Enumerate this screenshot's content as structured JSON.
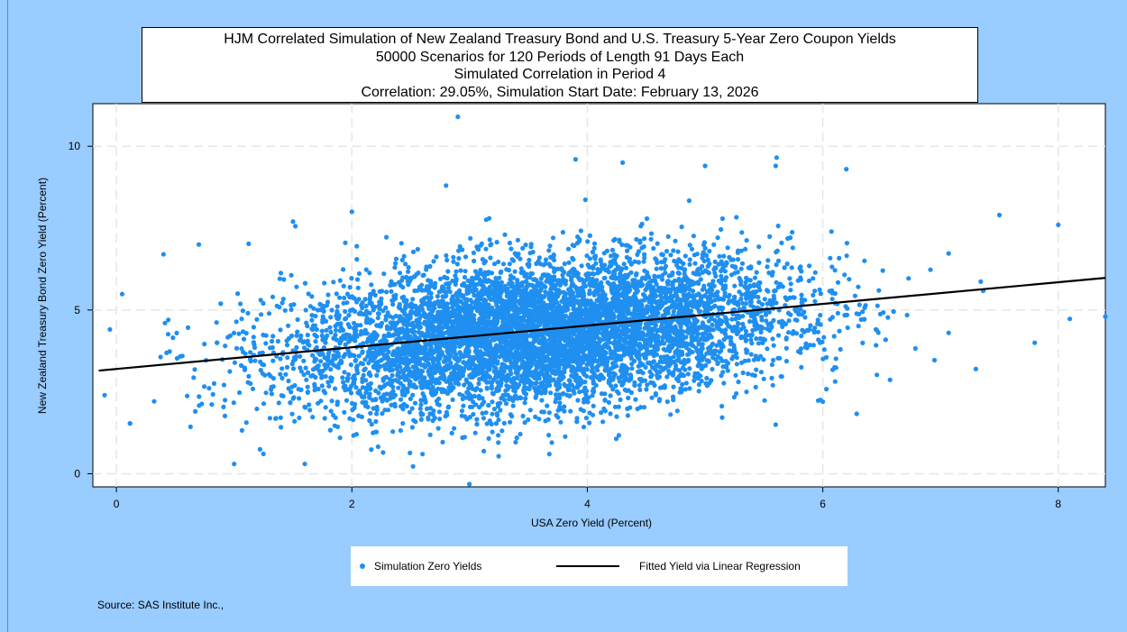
{
  "title_lines": [
    "HJM Correlated Simulation of New Zealand Treasury Bond and U.S. Treasury 5-Year Zero Coupon Yields",
    "50000 Scenarios for 120 Periods of Length 91 Days Each",
    "Simulated Correlation in Period 4",
    "Correlation: 29.05%,  Simulation Start Date:  February 13, 2026"
  ],
  "source": "Source: SAS Institute Inc.,",
  "legend": {
    "scatter_label": "Simulation Zero Yields",
    "line_label": "Fitted Yield via Linear Regression"
  },
  "colors": {
    "background": "#99ccff",
    "points": "#1f8ff0",
    "fit_line": "#000000"
  },
  "chart_data": {
    "type": "scatter",
    "xlabel": "USA Zero Yield (Percent)",
    "ylabel": "New Zealand Treasury Bond Zero Yield (Percent)",
    "xlim": [
      -0.2,
      8.4
    ],
    "ylim": [
      -0.4,
      11.3
    ],
    "xticks": [
      0,
      2,
      4,
      6,
      8
    ],
    "yticks": [
      0,
      5,
      10
    ],
    "grid": true,
    "legend_position": "bottom",
    "series": [
      {
        "name": "Simulation Zero Yields",
        "type": "scatter",
        "n_scenarios": 50000,
        "x_mean": 3.6,
        "y_mean": 4.3,
        "correlation": 0.2905,
        "outliers": [
          {
            "x": 2.9,
            "y": 10.9
          },
          {
            "x": 3.9,
            "y": 9.6
          },
          {
            "x": 4.3,
            "y": 9.5
          },
          {
            "x": 5.0,
            "y": 9.4
          },
          {
            "x": 5.6,
            "y": 9.4
          },
          {
            "x": 6.2,
            "y": 9.3
          },
          {
            "x": 8.0,
            "y": 7.6
          },
          {
            "x": 8.4,
            "y": 4.8
          },
          {
            "x": 7.8,
            "y": 4.0
          },
          {
            "x": 7.5,
            "y": 7.9
          },
          {
            "x": -0.1,
            "y": 2.4
          },
          {
            "x": 1.0,
            "y": 0.3
          },
          {
            "x": 1.6,
            "y": 0.3
          },
          {
            "x": 2.6,
            "y": 0.6
          },
          {
            "x": 0.4,
            "y": 6.7
          },
          {
            "x": 0.7,
            "y": 7.0
          },
          {
            "x": 1.5,
            "y": 7.7
          },
          {
            "x": 2.0,
            "y": 8.0
          },
          {
            "x": 2.8,
            "y": 8.8
          },
          {
            "x": 7.3,
            "y": 3.2
          },
          {
            "x": 5.6,
            "y": 1.5
          },
          {
            "x": 6.0,
            "y": 2.2
          }
        ]
      },
      {
        "name": "Fitted Yield via Linear Regression",
        "type": "line",
        "points": [
          {
            "x": -0.15,
            "y": 3.15
          },
          {
            "x": 8.4,
            "y": 5.98
          }
        ]
      }
    ]
  }
}
